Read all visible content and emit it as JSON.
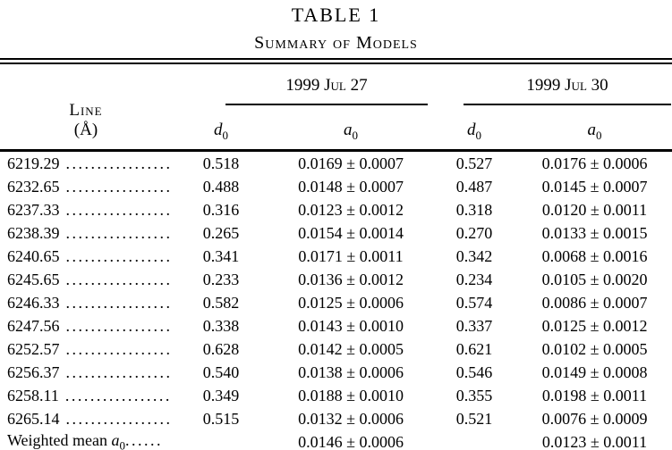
{
  "page": {
    "title": "TABLE 1",
    "subtitle": "Summary of Models"
  },
  "table": {
    "line_column": {
      "name": "Line",
      "unit": "(Å)"
    },
    "groups": [
      {
        "date": "1999 Jul 27",
        "columns": [
          {
            "sym": "d",
            "sub": "0"
          },
          {
            "sym": "a",
            "sub": "0"
          }
        ]
      },
      {
        "date": "1999 Jul 30",
        "columns": [
          {
            "sym": "d",
            "sub": "0"
          },
          {
            "sym": "a",
            "sub": "0"
          }
        ]
      }
    ],
    "leader": ".................",
    "rows": [
      {
        "line": "6219.29",
        "jul27": {
          "d0": "0.518",
          "a0": "0.0169 ± 0.0007"
        },
        "jul30": {
          "d0": "0.527",
          "a0": "0.0176 ± 0.0006"
        }
      },
      {
        "line": "6232.65",
        "jul27": {
          "d0": "0.488",
          "a0": "0.0148 ± 0.0007"
        },
        "jul30": {
          "d0": "0.487",
          "a0": "0.0145 ± 0.0007"
        }
      },
      {
        "line": "6237.33",
        "jul27": {
          "d0": "0.316",
          "a0": "0.0123 ± 0.0012"
        },
        "jul30": {
          "d0": "0.318",
          "a0": "0.0120 ± 0.0011"
        }
      },
      {
        "line": "6238.39",
        "jul27": {
          "d0": "0.265",
          "a0": "0.0154 ± 0.0014"
        },
        "jul30": {
          "d0": "0.270",
          "a0": "0.0133 ± 0.0015"
        }
      },
      {
        "line": "6240.65",
        "jul27": {
          "d0": "0.341",
          "a0": "0.0171 ± 0.0011"
        },
        "jul30": {
          "d0": "0.342",
          "a0": "0.0068 ± 0.0016"
        }
      },
      {
        "line": "6245.65",
        "jul27": {
          "d0": "0.233",
          "a0": "0.0136 ± 0.0012"
        },
        "jul30": {
          "d0": "0.234",
          "a0": "0.0105 ± 0.0020"
        }
      },
      {
        "line": "6246.33",
        "jul27": {
          "d0": "0.582",
          "a0": "0.0125 ± 0.0006"
        },
        "jul30": {
          "d0": "0.574",
          "a0": "0.0086 ± 0.0007"
        }
      },
      {
        "line": "6247.56",
        "jul27": {
          "d0": "0.338",
          "a0": "0.0143 ± 0.0010"
        },
        "jul30": {
          "d0": "0.337",
          "a0": "0.0125 ± 0.0012"
        }
      },
      {
        "line": "6252.57",
        "jul27": {
          "d0": "0.628",
          "a0": "0.0142 ± 0.0005"
        },
        "jul30": {
          "d0": "0.621",
          "a0": "0.0102 ± 0.0005"
        }
      },
      {
        "line": "6256.37",
        "jul27": {
          "d0": "0.540",
          "a0": "0.0138 ± 0.0006"
        },
        "jul30": {
          "d0": "0.546",
          "a0": "0.0149 ± 0.0008"
        }
      },
      {
        "line": "6258.11",
        "jul27": {
          "d0": "0.349",
          "a0": "0.0188 ± 0.0010"
        },
        "jul30": {
          "d0": "0.355",
          "a0": "0.0198 ± 0.0011"
        }
      },
      {
        "line": "6265.14",
        "jul27": {
          "d0": "0.515",
          "a0": "0.0132 ± 0.0006"
        },
        "jul30": {
          "d0": "0.521",
          "a0": "0.0076 ± 0.0009"
        }
      }
    ],
    "summary": {
      "label_prefix": "Weighted mean ",
      "label_symbol": "a",
      "label_sub": "0",
      "label_leader": "......",
      "jul27": {
        "d0": "",
        "a0": "0.0146 ± 0.0006"
      },
      "jul30": {
        "d0": "",
        "a0": "0.0123 ± 0.0011"
      }
    }
  }
}
